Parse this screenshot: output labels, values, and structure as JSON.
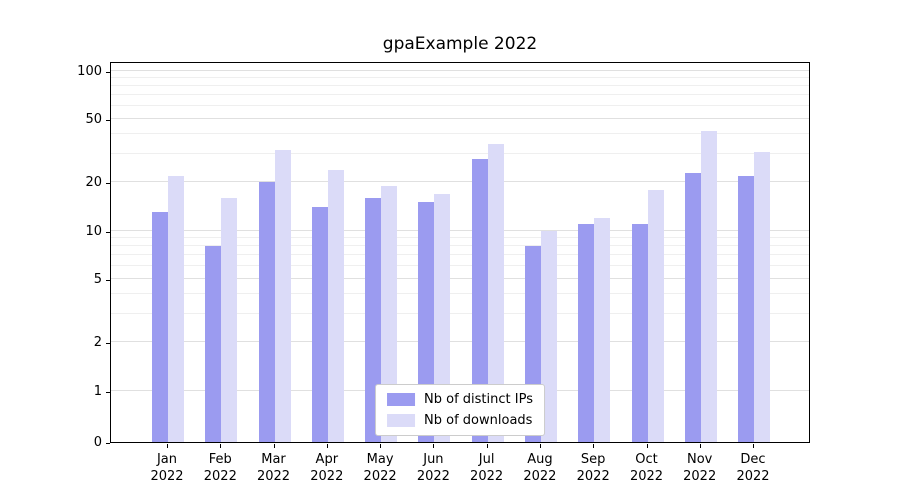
{
  "chart_data": {
    "type": "bar",
    "title": "gpaExample 2022",
    "categories": [
      "Jan 2022",
      "Feb 2022",
      "Mar 2022",
      "Apr 2022",
      "May 2022",
      "Jun 2022",
      "Jul 2022",
      "Aug 2022",
      "Sep 2022",
      "Oct 2022",
      "Nov 2022",
      "Dec 2022"
    ],
    "series": [
      {
        "name": "Nb of distinct IPs",
        "color": "#9b9bf0",
        "values": [
          13,
          8,
          20,
          14,
          16,
          15,
          28,
          8,
          11,
          11,
          23,
          22
        ]
      },
      {
        "name": "Nb of downloads",
        "color": "#dbdbf8",
        "values": [
          22,
          16,
          32,
          24,
          19,
          17,
          35,
          10,
          12,
          18,
          42,
          31
        ]
      }
    ],
    "xlabel": "",
    "ylabel": "",
    "yscale": "symlog",
    "y_ticks": [
      0,
      1,
      2,
      5,
      10,
      20,
      50,
      100
    ],
    "y_minor_gridlines": [
      3,
      4,
      6,
      7,
      8,
      9,
      30,
      40,
      60,
      70,
      80,
      90
    ],
    "ylim": [
      0,
      110
    ],
    "grid": true,
    "legend_position": "lower center"
  }
}
